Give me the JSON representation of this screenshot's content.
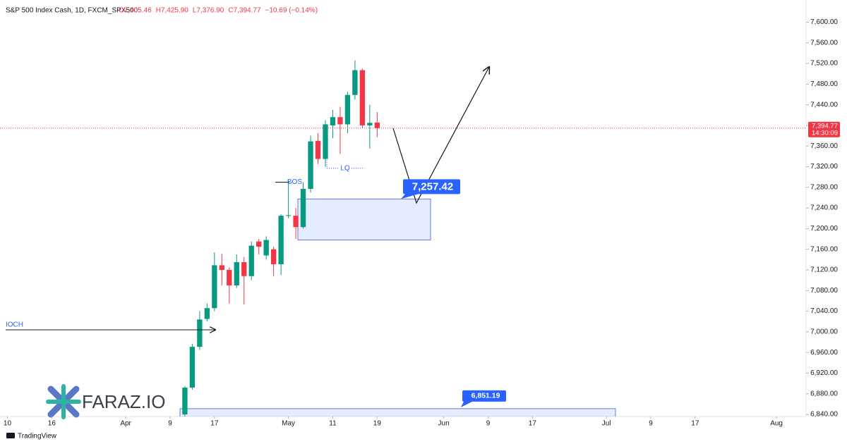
{
  "chart_data": {
    "type": "candlestick",
    "title": "S&P 500 Index Cash, 1D, FXCM_SPX500",
    "ohlc_labels": [
      "O7,405.46",
      "H7,425.90",
      "L7,376.90",
      "C7,394.77",
      "−10.69 (−0.14%)"
    ],
    "up_color": "#089981",
    "down_color": "#f23645",
    "x": [
      24,
      25,
      26,
      27,
      28,
      29,
      30,
      31,
      32,
      33,
      34,
      35,
      36,
      37,
      38,
      39,
      40,
      41,
      42,
      43,
      44,
      45,
      46,
      47,
      48,
      49,
      50
    ],
    "open": [
      6840,
      6892,
      6971,
      7025,
      7046,
      7129,
      7120,
      7090,
      7135,
      7108,
      7175,
      7148,
      7160,
      7131,
      7225,
      7225,
      7203,
      7277,
      7370,
      7335,
      7400,
      7416,
      7402,
      7459,
      7507,
      7400,
      7405.46
    ],
    "high": [
      6895,
      6977,
      7040,
      7055,
      7154,
      7151,
      7125,
      7150,
      7145,
      7175,
      7180,
      7185,
      7165,
      7228,
      7294,
      7240,
      7290,
      7380,
      7385,
      7410,
      7430,
      7436,
      7465,
      7526,
      7510,
      7440,
      7425.9
    ],
    "low": [
      6835,
      6888,
      6965,
      7020,
      7040,
      7090,
      7055,
      7085,
      7053,
      7100,
      7150,
      7140,
      7108,
      7110,
      7220,
      7180,
      7200,
      7270,
      7325,
      7320,
      7375,
      7345,
      7385,
      7450,
      7395,
      7355,
      7376.9
    ],
    "close": [
      6892,
      6971,
      7024,
      7046,
      7129,
      7120,
      7090,
      7135,
      7108,
      7167,
      7165,
      7178,
      7131,
      7225,
      7226,
      7203,
      7277,
      7369,
      7335,
      7402,
      7416,
      7402,
      7459,
      7507,
      7400,
      7405,
      7394.77
    ],
    "xlim": [
      -1,
      108
    ],
    "ylim": [
      6836,
      7632
    ],
    "xticks": [
      {
        "value": 0,
        "label": "10"
      },
      {
        "value": 6,
        "label": "16"
      },
      {
        "value": 16,
        "label": "Apr"
      },
      {
        "value": 22,
        "label": "9"
      },
      {
        "value": 28,
        "label": "17"
      },
      {
        "value": 38,
        "label": "May"
      },
      {
        "value": 44,
        "label": "11"
      },
      {
        "value": 50,
        "label": "19"
      },
      {
        "value": 59,
        "label": "Jun"
      },
      {
        "value": 65,
        "label": "9"
      },
      {
        "value": 71,
        "label": "17"
      },
      {
        "value": 81,
        "label": "Jul"
      },
      {
        "value": 87,
        "label": "9"
      },
      {
        "value": 93,
        "label": "17"
      },
      {
        "value": 104,
        "label": "Aug"
      }
    ],
    "yticks": [
      {
        "value": 6840,
        "label": "6,840.00"
      },
      {
        "value": 6880,
        "label": "6,880.00"
      },
      {
        "value": 6920,
        "label": "6,920.00"
      },
      {
        "value": 6960,
        "label": "6,960.00"
      },
      {
        "value": 7000,
        "label": "7,000.00"
      },
      {
        "value": 7040,
        "label": "7,040.00"
      },
      {
        "value": 7080,
        "label": "7,080.00"
      },
      {
        "value": 7120,
        "label": "7,120.00"
      },
      {
        "value": 7160,
        "label": "7,160.00"
      },
      {
        "value": 7200,
        "label": "7,200.00"
      },
      {
        "value": 7240,
        "label": "7,240.00"
      },
      {
        "value": 7280,
        "label": "7,280.00"
      },
      {
        "value": 7320,
        "label": "7,320.00"
      },
      {
        "value": 7360,
        "label": "7,360.00"
      },
      {
        "value": 7400,
        "label": "7,400.00"
      },
      {
        "value": 7440,
        "label": "7,440.00"
      },
      {
        "value": 7480,
        "label": "7,480.00"
      },
      {
        "value": 7520,
        "label": "7,520.00"
      },
      {
        "value": 7560,
        "label": "7,560.00"
      },
      {
        "value": 7600,
        "label": "7,600.00"
      }
    ],
    "last_price_label": "7,394.77",
    "countdown": "14:30:09",
    "annotations": [
      {
        "text": "BOS",
        "price": 7290
      },
      {
        "text": "LQ",
        "price": 7317
      },
      {
        "text": "IOCH",
        "price": 7004
      }
    ],
    "zones": [
      {
        "label": "7,257.42",
        "top": 7257.42,
        "bottom": 7178
      },
      {
        "label": "6,851.19",
        "top": 6851.19
      }
    ],
    "logo": "FARAZ.IO",
    "watermark": "TradingView"
  }
}
